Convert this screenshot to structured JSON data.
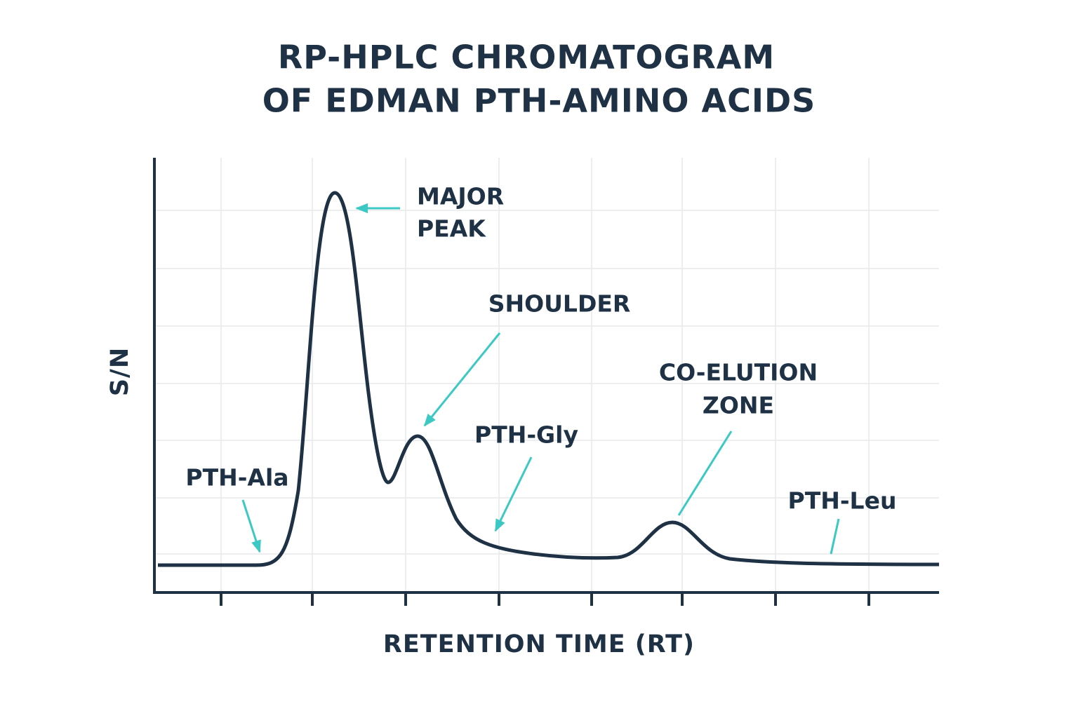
{
  "title": {
    "line1": "RP-HPLC CHROMATOGRAM",
    "line2": "OF EDMAN PTH-AMINO ACIDS"
  },
  "axes": {
    "y_label": "S/N",
    "x_label": "RETENTION TIME (RT)"
  },
  "annotations": {
    "major_peak": [
      "MAJOR",
      "PEAK"
    ],
    "shoulder": "SHOULDER",
    "pth_gly": "PTH-Gly",
    "co_elution": [
      "CO-ELUTION",
      "ZONE"
    ],
    "pth_ala": "PTH-Ala",
    "pth_leu": "PTH-Leu"
  }
}
